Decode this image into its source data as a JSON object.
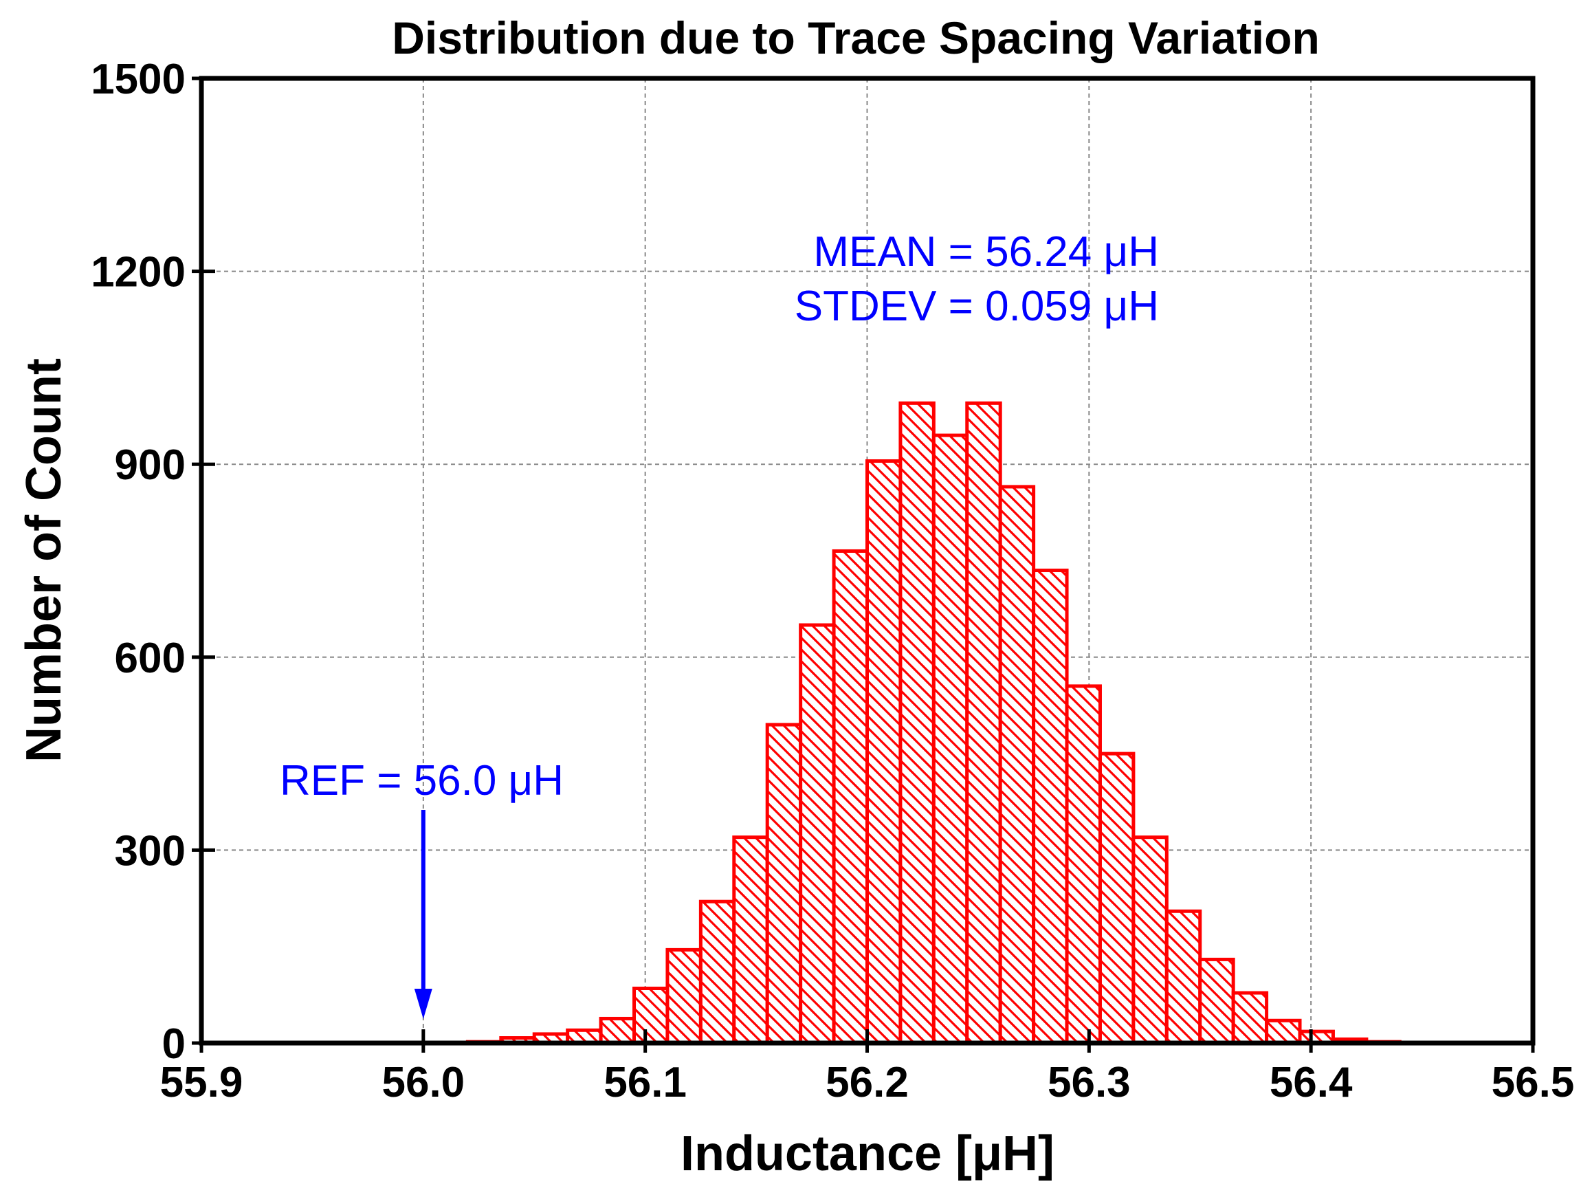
{
  "chart_data": {
    "type": "bar",
    "title": "Distribution due to Trace Spacing Variation",
    "xlabel": "Inductance [μH]",
    "ylabel": "Number of Count",
    "xlim": [
      55.9,
      56.5
    ],
    "ylim": [
      0,
      1500
    ],
    "xticks": [
      "55.9",
      "56.0",
      "56.1",
      "56.2",
      "56.3",
      "56.4",
      "56.5"
    ],
    "yticks": [
      "0",
      "300",
      "600",
      "900",
      "1200",
      "1500"
    ],
    "grid": true,
    "bin_width": 0.015,
    "bins_start": [
      56.02,
      56.035,
      56.05,
      56.065,
      56.08,
      56.095,
      56.11,
      56.125,
      56.14,
      56.155,
      56.17,
      56.185,
      56.2,
      56.215,
      56.23,
      56.245,
      56.26,
      56.275,
      56.29,
      56.305,
      56.32,
      56.335,
      56.35,
      56.365,
      56.38,
      56.395,
      56.41,
      56.425
    ],
    "values": [
      2,
      8,
      14,
      20,
      38,
      85,
      145,
      220,
      320,
      495,
      650,
      765,
      905,
      995,
      945,
      995,
      865,
      735,
      555,
      450,
      320,
      205,
      130,
      78,
      35,
      18,
      6,
      2
    ],
    "bar_color": "#ff0000",
    "annotations": {
      "mean": "MEAN = 56.24 μH",
      "stdev": "STDEV = 0.059 μH",
      "ref": "REF = 56.0 μH",
      "ref_value": 56.0,
      "color": "#0000ff"
    }
  }
}
